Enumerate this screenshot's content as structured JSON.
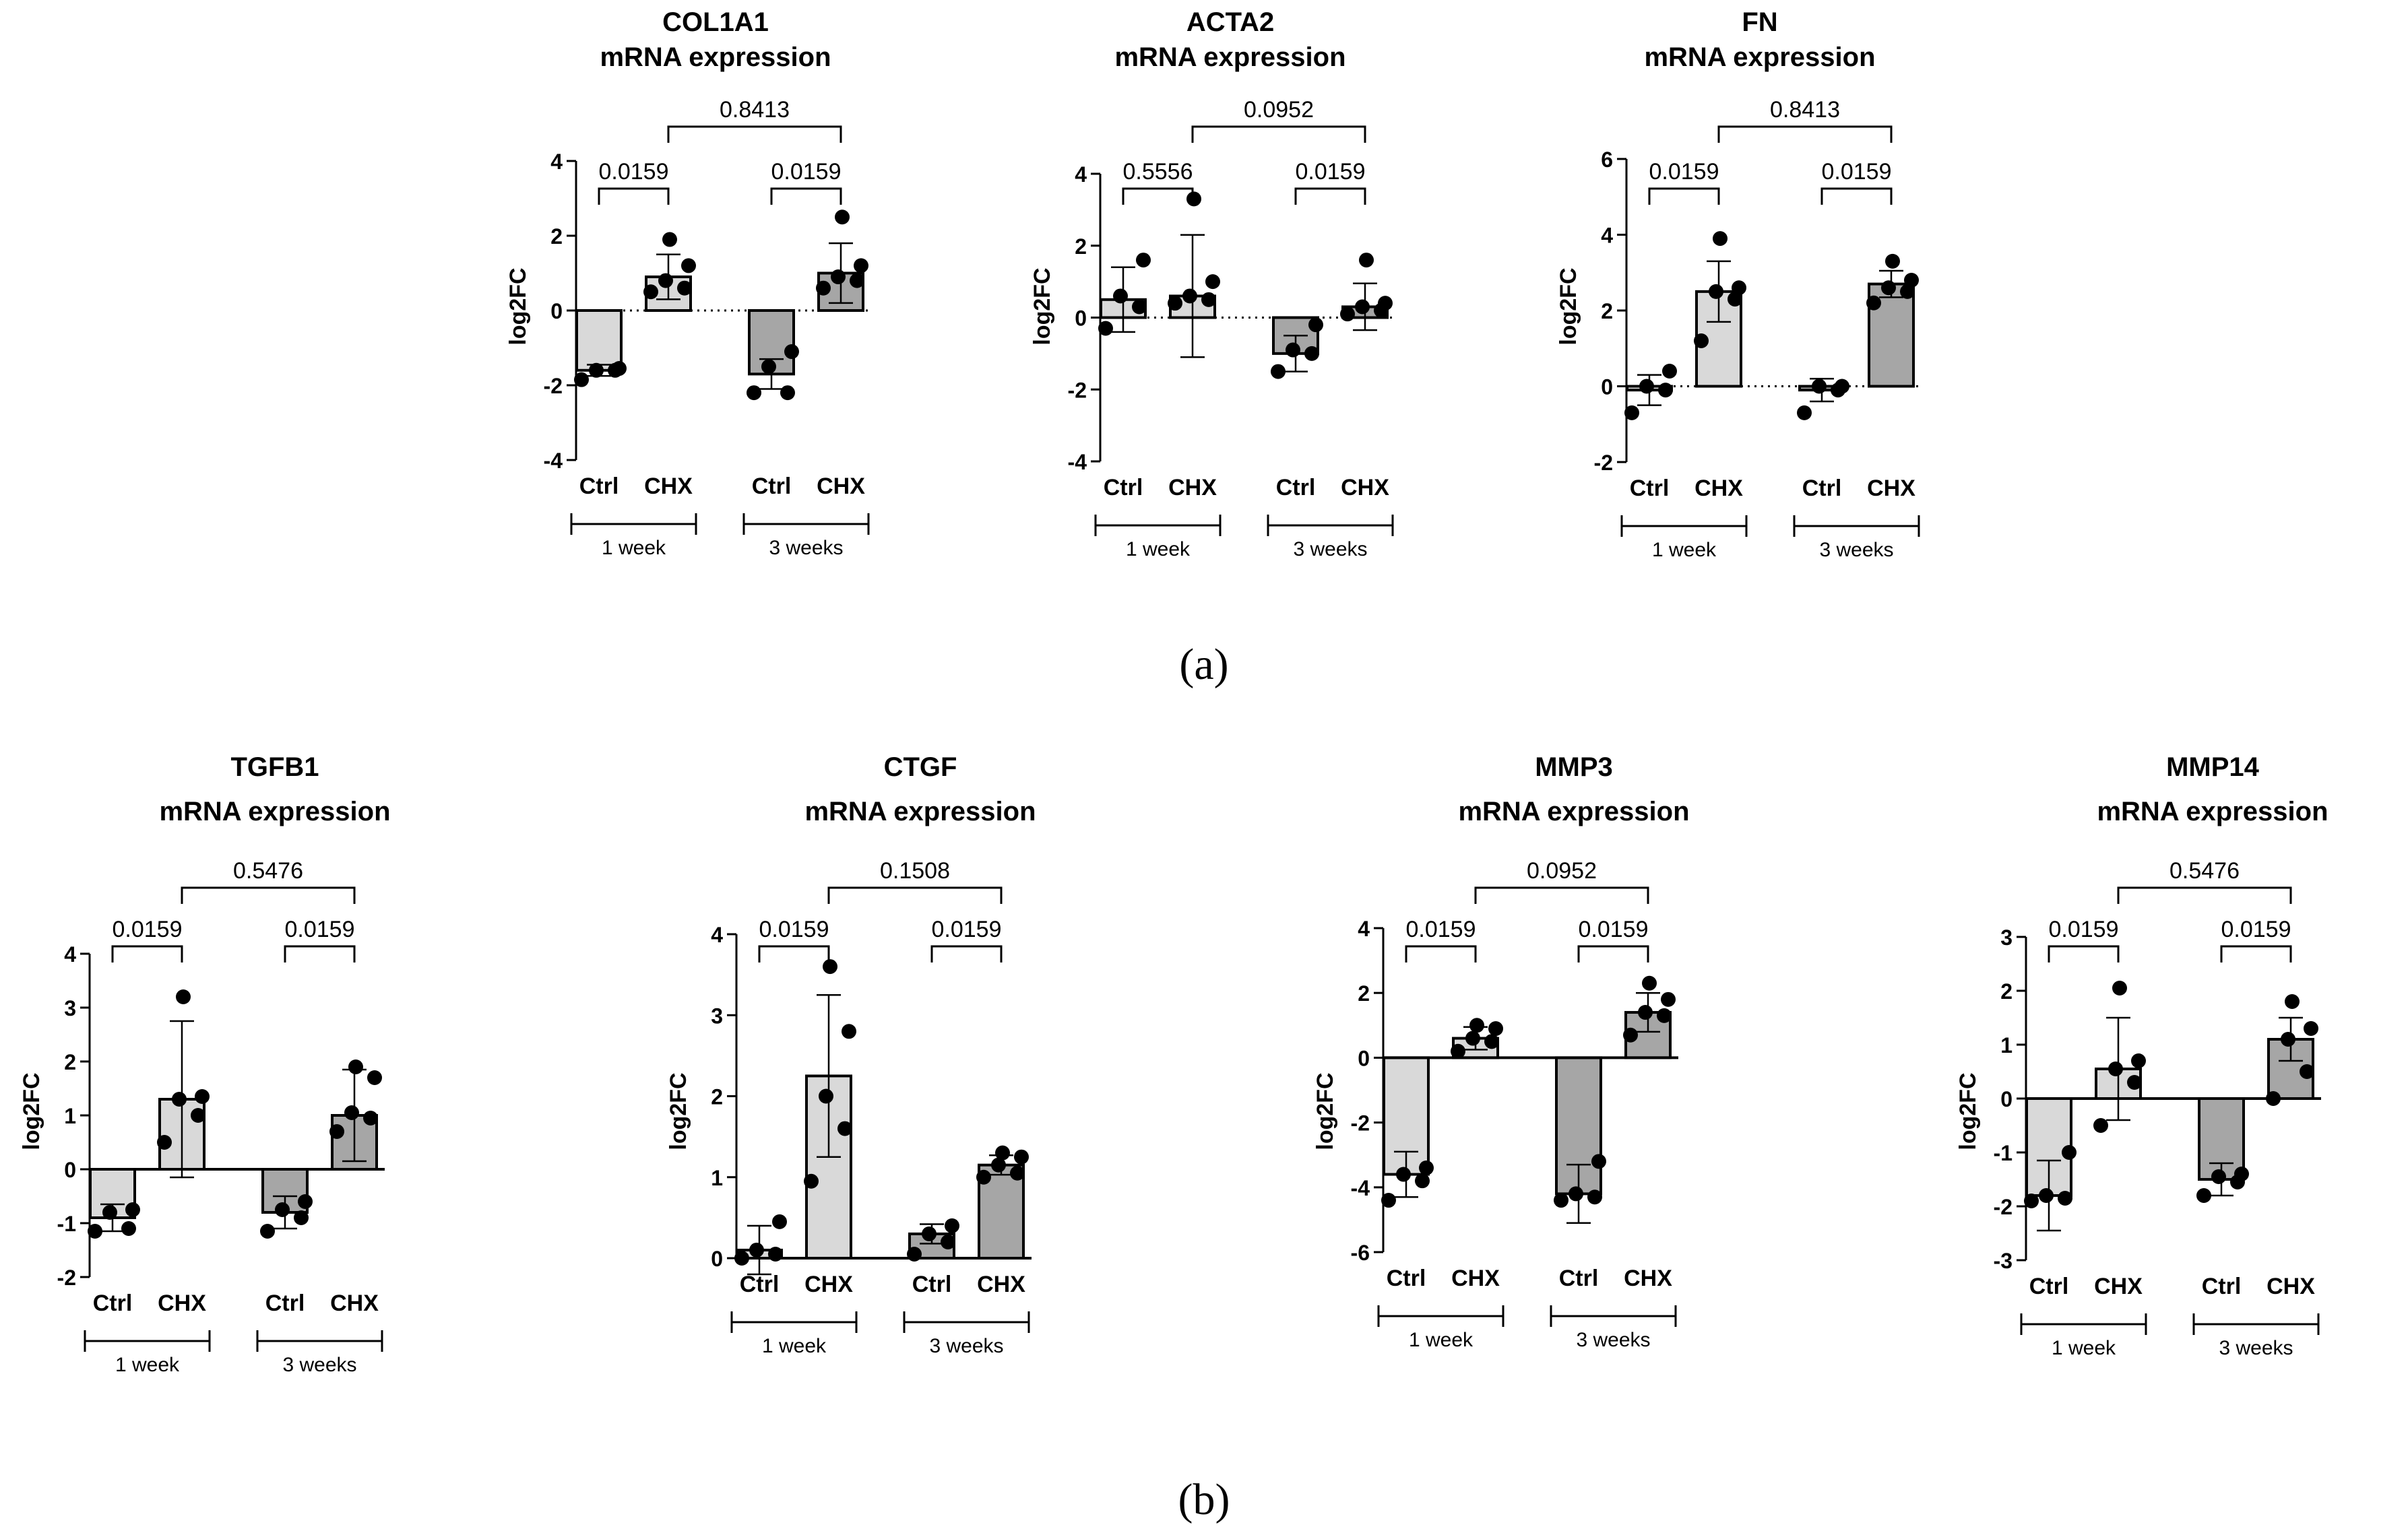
{
  "panel_labels": [
    "(a)",
    "(b)"
  ],
  "chart_data": [
    {
      "type": "bar",
      "gene": "COL1A1",
      "subtitle": "mRNA expression",
      "ylabel": "log2FC",
      "ylim": [
        -4,
        4
      ],
      "yticks": [
        "4",
        "2",
        "0",
        "-2",
        "-4"
      ],
      "zero_line": "dotted",
      "categories": [
        "Ctrl",
        "CHX",
        "Ctrl",
        "CHX"
      ],
      "groups": [
        "1 week",
        "3 weeks"
      ],
      "values": [
        -1.6,
        0.9,
        -1.7,
        1.0
      ],
      "errors": [
        0.15,
        0.6,
        0.4,
        0.8
      ],
      "points": [
        [
          -1.85,
          -1.6,
          -1.6,
          -1.55
        ],
        [
          0.5,
          0.6,
          0.8,
          1.2,
          1.9
        ],
        [
          -2.2,
          -2.2,
          -1.5,
          -1.1
        ],
        [
          0.6,
          0.8,
          0.9,
          1.2,
          2.5
        ]
      ],
      "comparisons": [
        {
          "label": "0.0159",
          "from": 0,
          "to": 1
        },
        {
          "label": "0.0159",
          "from": 2,
          "to": 3
        },
        {
          "label": "0.8413",
          "from": 1,
          "to": 3
        }
      ]
    },
    {
      "type": "bar",
      "gene": "ACTA2",
      "subtitle": "mRNA expression",
      "ylabel": "log2FC",
      "ylim": [
        -4,
        4
      ],
      "yticks": [
        "4",
        "2",
        "0",
        "-2",
        "-4"
      ],
      "zero_line": "dotted",
      "categories": [
        "Ctrl",
        "CHX",
        "Ctrl",
        "CHX"
      ],
      "groups": [
        "1 week",
        "3 weeks"
      ],
      "values": [
        0.5,
        0.6,
        -1.0,
        0.3
      ],
      "errors": [
        0.9,
        1.7,
        0.5,
        0.65
      ],
      "points": [
        [
          -0.3,
          0.3,
          0.6,
          1.6
        ],
        [
          0.4,
          0.5,
          0.6,
          1.0,
          3.3
        ],
        [
          -1.5,
          -1.0,
          -0.9,
          -0.2
        ],
        [
          0.1,
          0.2,
          0.3,
          0.4,
          1.6
        ]
      ],
      "comparisons": [
        {
          "label": "0.5556",
          "from": 0,
          "to": 1
        },
        {
          "label": "0.0159",
          "from": 2,
          "to": 3
        },
        {
          "label": "0.0952",
          "from": 1,
          "to": 3
        }
      ]
    },
    {
      "type": "bar",
      "gene": "FN",
      "subtitle": "mRNA expression",
      "ylabel": "log2FC",
      "ylim": [
        -2,
        6
      ],
      "yticks": [
        "6",
        "4",
        "2",
        "0",
        "-2"
      ],
      "zero_line": "dotted",
      "categories": [
        "Ctrl",
        "CHX",
        "Ctrl",
        "CHX"
      ],
      "groups": [
        "1 week",
        "3 weeks"
      ],
      "values": [
        -0.1,
        2.5,
        -0.1,
        2.7
      ],
      "errors": [
        0.4,
        0.8,
        0.3,
        0.35
      ],
      "points": [
        [
          -0.7,
          -0.1,
          0.0,
          0.4
        ],
        [
          1.2,
          2.3,
          2.5,
          2.6,
          3.9
        ],
        [
          -0.7,
          -0.1,
          0.0,
          0.0
        ],
        [
          2.2,
          2.5,
          2.6,
          2.8,
          3.3
        ]
      ],
      "comparisons": [
        {
          "label": "0.0159",
          "from": 0,
          "to": 1
        },
        {
          "label": "0.0159",
          "from": 2,
          "to": 3
        },
        {
          "label": "0.8413",
          "from": 1,
          "to": 3
        }
      ]
    },
    {
      "type": "bar",
      "gene": "TGFB1",
      "subtitle": "mRNA expression",
      "ylabel": "log2FC",
      "ylim": [
        -2,
        4
      ],
      "yticks": [
        "4",
        "3",
        "2",
        "1",
        "0",
        "-1",
        "-2"
      ],
      "zero_line": "solid",
      "categories": [
        "Ctrl",
        "CHX",
        "Ctrl",
        "CHX"
      ],
      "groups": [
        "1 week",
        "3 weeks"
      ],
      "values": [
        -0.9,
        1.3,
        -0.8,
        1.0
      ],
      "errors": [
        0.25,
        1.45,
        0.3,
        0.85
      ],
      "points": [
        [
          -1.15,
          -1.1,
          -0.8,
          -0.75
        ],
        [
          0.5,
          1.0,
          1.3,
          1.35,
          3.2
        ],
        [
          -1.15,
          -0.9,
          -0.75,
          -0.6
        ],
        [
          0.7,
          0.95,
          1.05,
          1.7,
          1.9
        ]
      ],
      "comparisons": [
        {
          "label": "0.0159",
          "from": 0,
          "to": 1
        },
        {
          "label": "0.0159",
          "from": 2,
          "to": 3
        },
        {
          "label": "0.5476",
          "from": 1,
          "to": 3
        }
      ]
    },
    {
      "type": "bar",
      "gene": "CTGF",
      "subtitle": "mRNA expression",
      "ylabel": "log2FC",
      "ylim": [
        0,
        4
      ],
      "yticks": [
        "4",
        "3",
        "2",
        "1",
        "0"
      ],
      "zero_line": "solid",
      "categories": [
        "Ctrl",
        "CHX",
        "Ctrl",
        "CHX"
      ],
      "groups": [
        "1 week",
        "3 weeks"
      ],
      "values": [
        0.1,
        2.25,
        0.3,
        1.15
      ],
      "errors": [
        0.3,
        1.0,
        0.12,
        0.12
      ],
      "points": [
        [
          0.0,
          0.05,
          0.1,
          0.45
        ],
        [
          0.95,
          1.6,
          2.0,
          2.8,
          3.6
        ],
        [
          0.05,
          0.2,
          0.3,
          0.4
        ],
        [
          1.0,
          1.05,
          1.15,
          1.25,
          1.3
        ]
      ],
      "comparisons": [
        {
          "label": "0.0159",
          "from": 0,
          "to": 1
        },
        {
          "label": "0.0159",
          "from": 2,
          "to": 3
        },
        {
          "label": "0.1508",
          "from": 1,
          "to": 3
        }
      ]
    },
    {
      "type": "bar",
      "gene": "MMP3",
      "subtitle": "mRNA expression",
      "ylabel": "log2FC",
      "ylim": [
        -6,
        4
      ],
      "yticks": [
        "4",
        "2",
        "0",
        "-2",
        "-4",
        "-6"
      ],
      "zero_line": "solid",
      "categories": [
        "Ctrl",
        "CHX",
        "Ctrl",
        "CHX"
      ],
      "groups": [
        "1 week",
        "3 weeks"
      ],
      "values": [
        -3.6,
        0.6,
        -4.2,
        1.4
      ],
      "errors": [
        0.7,
        0.35,
        0.9,
        0.6
      ],
      "points": [
        [
          -4.4,
          -3.8,
          -3.6,
          -3.4
        ],
        [
          0.2,
          0.5,
          0.6,
          0.9,
          1.0
        ],
        [
          -4.4,
          -4.3,
          -4.2,
          -3.2
        ],
        [
          0.7,
          1.3,
          1.4,
          1.8,
          2.3
        ]
      ],
      "comparisons": [
        {
          "label": "0.0159",
          "from": 0,
          "to": 1
        },
        {
          "label": "0.0159",
          "from": 2,
          "to": 3
        },
        {
          "label": "0.0952",
          "from": 1,
          "to": 3
        }
      ]
    },
    {
      "type": "bar",
      "gene": "MMP14",
      "subtitle": "mRNA expression",
      "ylabel": "log2FC",
      "ylim": [
        -3,
        3
      ],
      "yticks": [
        "3",
        "2",
        "1",
        "0",
        "-1",
        "-2",
        "-3"
      ],
      "zero_line": "solid",
      "categories": [
        "Ctrl",
        "CHX",
        "Ctrl",
        "CHX"
      ],
      "groups": [
        "1 week",
        "3 weeks"
      ],
      "values": [
        -1.8,
        0.55,
        -1.5,
        1.1
      ],
      "errors": [
        0.65,
        0.95,
        0.3,
        0.4
      ],
      "points": [
        [
          -1.9,
          -1.85,
          -1.8,
          -1.0
        ],
        [
          -0.5,
          0.3,
          0.55,
          0.7,
          2.05
        ],
        [
          -1.8,
          -1.55,
          -1.45,
          -1.4
        ],
        [
          0.0,
          0.5,
          1.1,
          1.3,
          1.8
        ]
      ],
      "comparisons": [
        {
          "label": "0.0159",
          "from": 0,
          "to": 1
        },
        {
          "label": "0.0159",
          "from": 2,
          "to": 3
        },
        {
          "label": "0.5476",
          "from": 1,
          "to": 3
        }
      ]
    }
  ]
}
